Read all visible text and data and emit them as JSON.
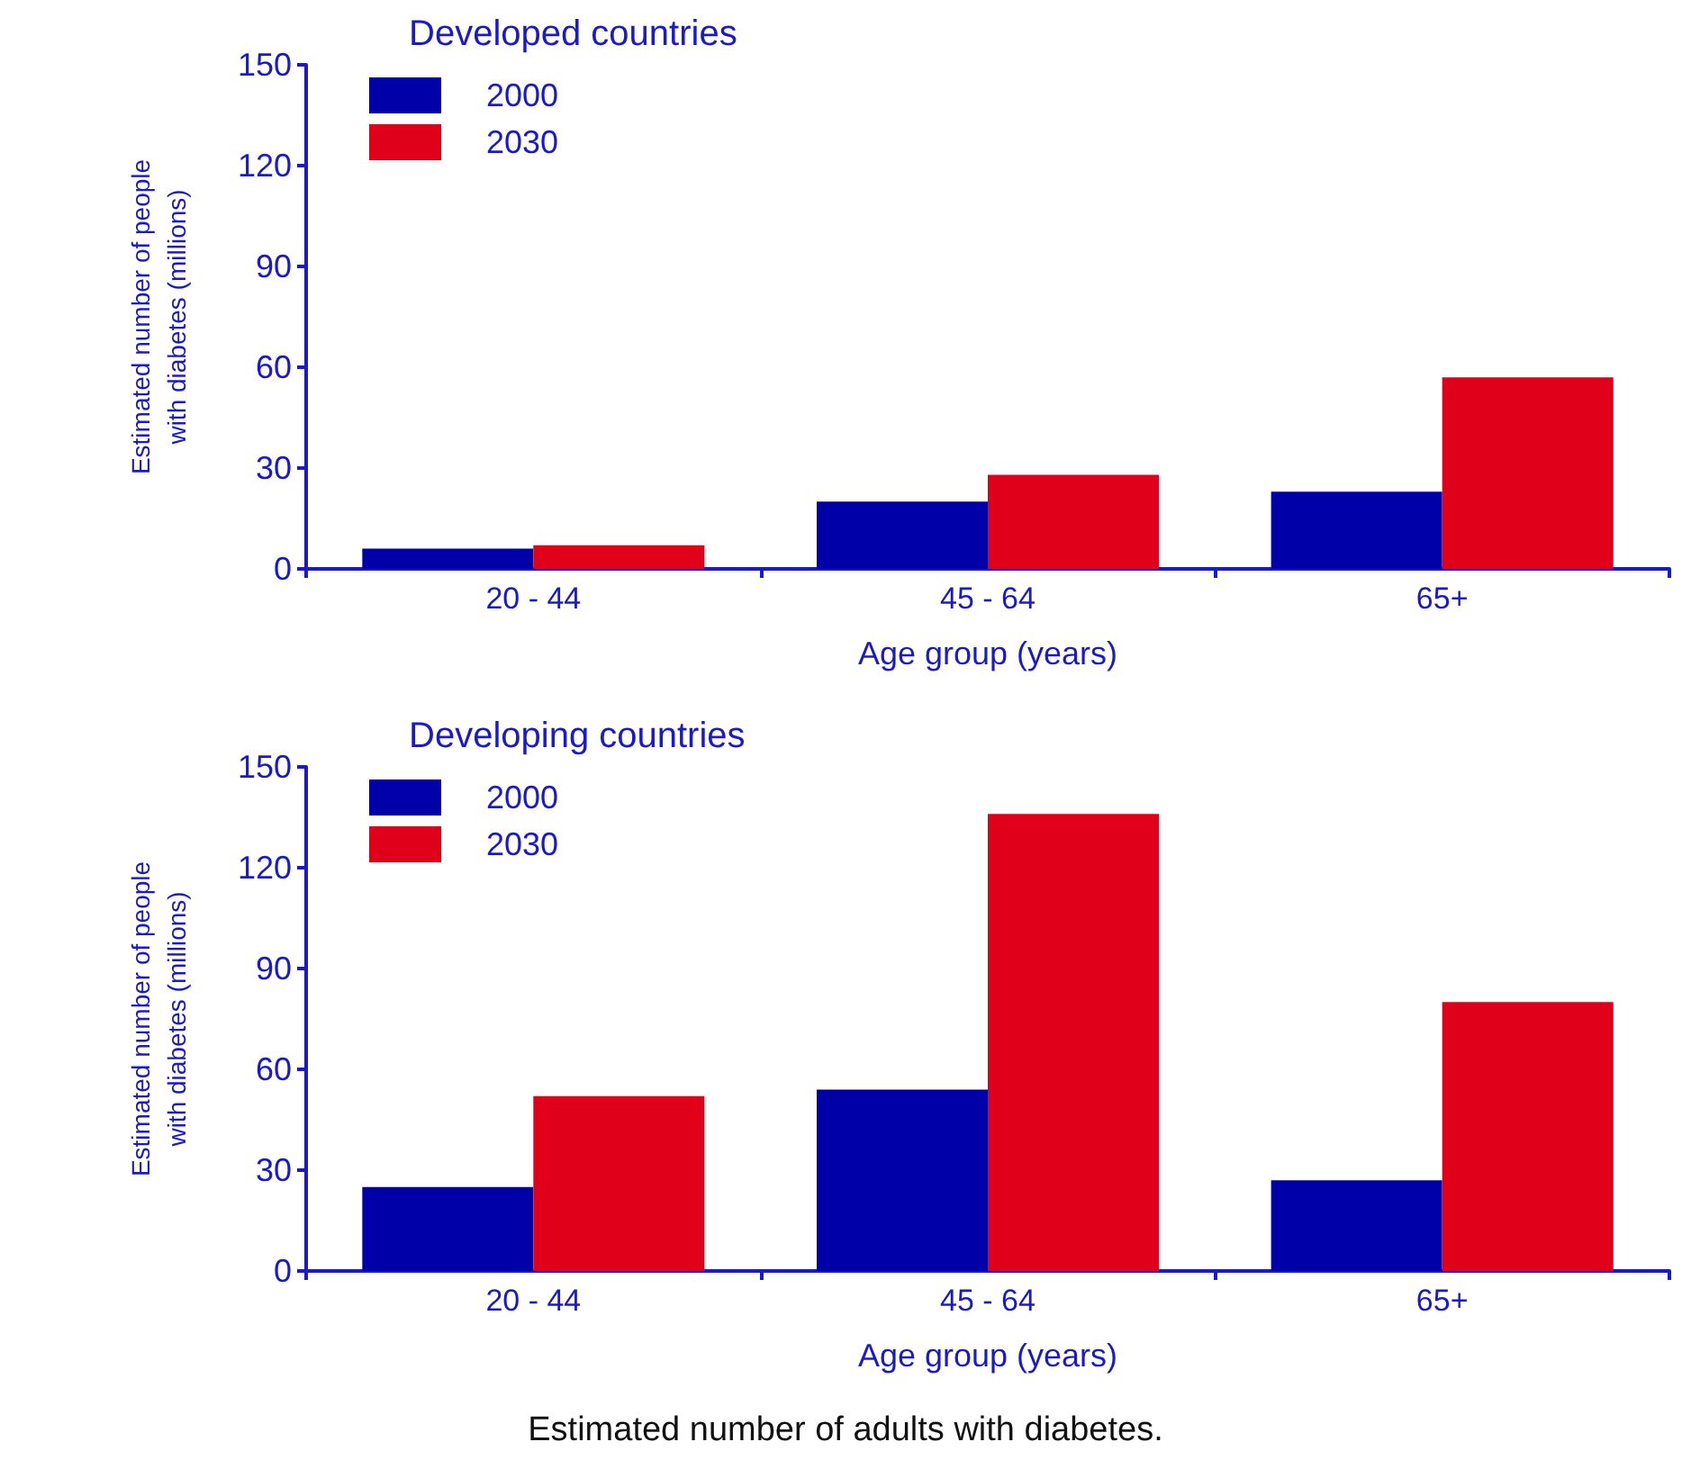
{
  "chart_data": [
    {
      "type": "bar",
      "title": "Developed countries",
      "xlabel": "Age group (years)",
      "ylabel": "Estimated number of people\nwith diabetes (millions)",
      "categories": [
        "20 - 44",
        "45 - 64",
        "65+"
      ],
      "series": [
        {
          "name": "2000",
          "color": "#0000a8",
          "values": [
            6,
            20,
            23
          ]
        },
        {
          "name": "2030",
          "color": "#e0001a",
          "values": [
            7,
            28,
            57
          ]
        }
      ],
      "ylim": [
        0,
        150
      ],
      "yticks": [
        0,
        30,
        60,
        90,
        120,
        150
      ],
      "grid": false,
      "legend": "top left"
    },
    {
      "type": "bar",
      "title": "Developing countries",
      "xlabel": "Age group (years)",
      "ylabel": "Estimated number of people\nwith diabetes (millions)",
      "categories": [
        "20 - 44",
        "45 - 64",
        "65+"
      ],
      "series": [
        {
          "name": "2000",
          "color": "#0000a8",
          "values": [
            25,
            54,
            27
          ]
        },
        {
          "name": "2030",
          "color": "#e0001a",
          "values": [
            52,
            136,
            80
          ]
        }
      ],
      "ylim": [
        0,
        150
      ],
      "yticks": [
        0,
        30,
        60,
        90,
        120,
        150
      ],
      "grid": false,
      "legend": "top left",
      "annotations": [
        "Estimated number of adults with diabetes."
      ]
    }
  ]
}
